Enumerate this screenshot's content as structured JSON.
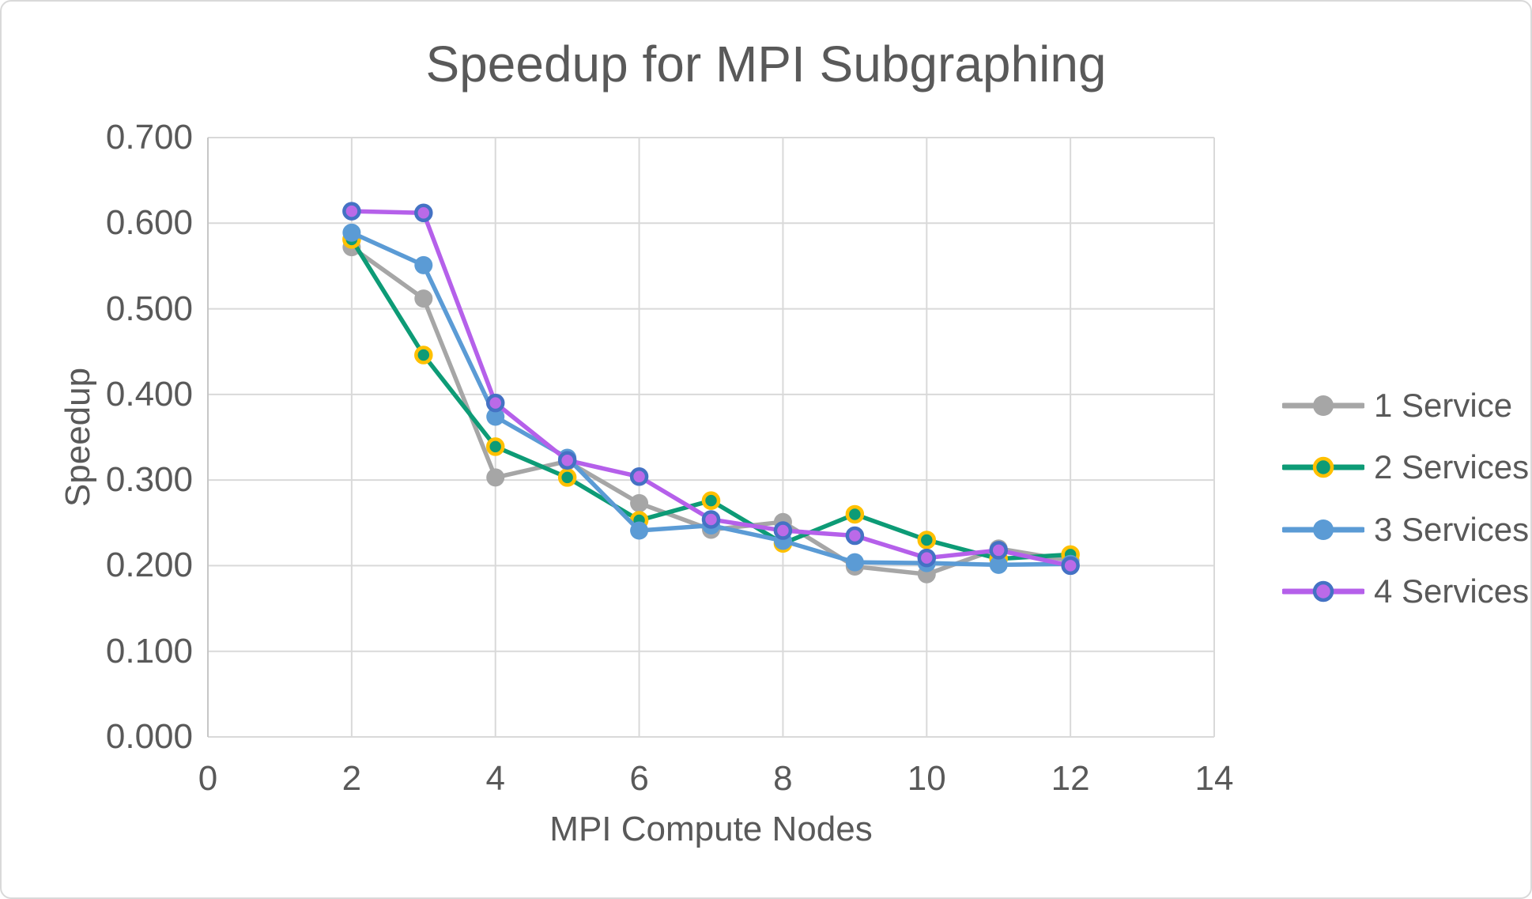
{
  "page": {
    "background": "#ffffff",
    "border_color": "#d9d9d9",
    "text_color": "#595959",
    "grid_color": "#d9d9d9",
    "axis_line_color": "#c6c6c6"
  },
  "chart_data": {
    "type": "line",
    "title": "Speedup for MPI Subgraphing",
    "xlabel": "MPI Compute Nodes",
    "ylabel": "Speedup",
    "xlim": [
      0,
      14
    ],
    "ylim": [
      0.0,
      0.7
    ],
    "x_ticks": [
      0,
      2,
      4,
      6,
      8,
      10,
      12,
      14
    ],
    "y_ticks": [
      "0.000",
      "0.100",
      "0.200",
      "0.300",
      "0.400",
      "0.500",
      "0.600",
      "0.700"
    ],
    "grid": true,
    "legend_position": "right",
    "x": [
      2,
      3,
      4,
      5,
      6,
      7,
      8,
      9,
      10,
      11,
      12
    ],
    "series": [
      {
        "name": "1 Service",
        "color": "#a6a6a6",
        "marker_fill": "#a6a6a6",
        "marker_border": "#a6a6a6",
        "values": [
          0.572,
          0.512,
          0.303,
          0.322,
          0.273,
          0.242,
          0.251,
          0.199,
          0.19,
          0.22,
          0.206
        ]
      },
      {
        "name": "2 Services",
        "color": "#0d9b76",
        "marker_fill": "#0d9b76",
        "marker_border": "#ffc000",
        "values": [
          0.581,
          0.446,
          0.339,
          0.303,
          0.253,
          0.276,
          0.226,
          0.26,
          0.23,
          0.208,
          0.213
        ]
      },
      {
        "name": "3 Services",
        "color": "#5b9bd5",
        "marker_fill": "#5b9bd5",
        "marker_border": "#5b9bd5",
        "values": [
          0.589,
          0.551,
          0.374,
          0.326,
          0.241,
          0.247,
          0.229,
          0.204,
          0.203,
          0.201,
          0.202
        ]
      },
      {
        "name": "4 Services",
        "color": "#b560ea",
        "marker_fill": "#bb6ae8",
        "marker_border": "#4472c4",
        "values": [
          0.614,
          0.612,
          0.39,
          0.323,
          0.304,
          0.254,
          0.241,
          0.235,
          0.209,
          0.218,
          0.2
        ]
      }
    ]
  }
}
